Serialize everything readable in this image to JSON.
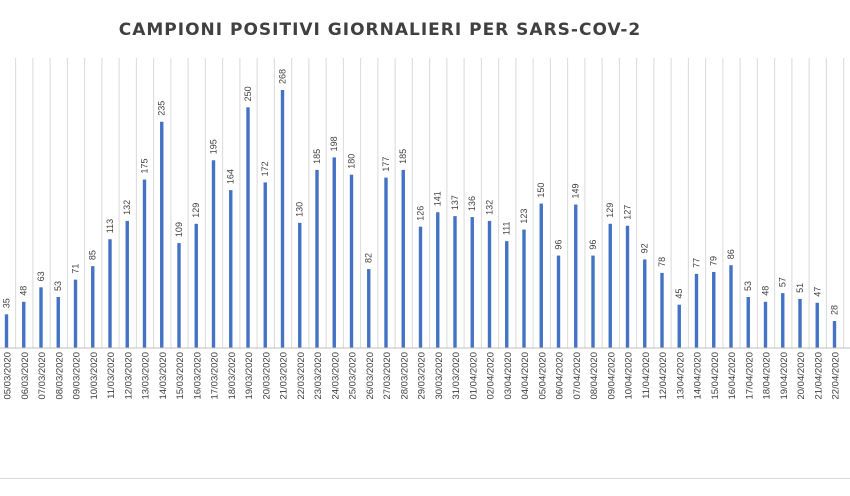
{
  "chart_data": {
    "type": "bar",
    "title": "CAMPIONI POSITIVI GIORNALIERI PER SARS-COV-2",
    "xlabel": "",
    "ylabel": "",
    "ylim": [
      0,
      300
    ],
    "grid": "vertical",
    "bar_color": "#4472c4",
    "data_labels": true,
    "categories": [
      "05/03/2020",
      "06/03/2020",
      "07/03/2020",
      "08/03/2020",
      "09/03/2020",
      "10/03/2020",
      "11/03/2020",
      "12/03/2020",
      "13/03/2020",
      "14/03/2020",
      "15/03/2020",
      "16/03/2020",
      "17/03/2020",
      "18/03/2020",
      "19/03/2020",
      "20/03/2020",
      "21/03/2020",
      "22/03/2020",
      "23/03/2020",
      "24/03/2020",
      "25/03/2020",
      "26/03/2020",
      "27/03/2020",
      "28/03/2020",
      "29/03/2020",
      "30/03/2020",
      "31/03/2020",
      "01/04/2020",
      "02/04/2020",
      "03/04/2020",
      "04/04/2020",
      "05/04/2020",
      "06/04/2020",
      "07/04/2020",
      "08/04/2020",
      "09/04/2020",
      "10/04/2020",
      "11/04/2020",
      "12/04/2020",
      "13/04/2020",
      "14/04/2020",
      "15/04/2020",
      "16/04/2020",
      "17/04/2020",
      "18/04/2020",
      "19/04/2020",
      "20/04/2020",
      "21/04/2020",
      "22/04/2020"
    ],
    "values": [
      35,
      48,
      63,
      53,
      71,
      85,
      113,
      132,
      175,
      235,
      109,
      129,
      195,
      164,
      250,
      172,
      268,
      130,
      185,
      198,
      180,
      82,
      177,
      185,
      126,
      141,
      137,
      136,
      132,
      111,
      123,
      150,
      96,
      149,
      96,
      129,
      127,
      92,
      78,
      45,
      77,
      79,
      86,
      53,
      48,
      57,
      51,
      47,
      28
    ]
  }
}
